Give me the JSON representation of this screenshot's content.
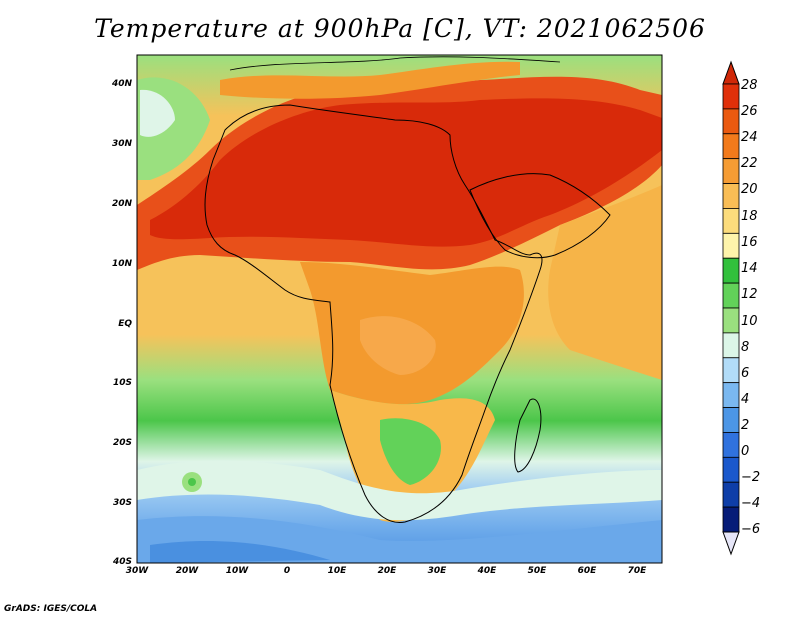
{
  "title": "Temperature at 900hPa [C], VT: 2021062506",
  "credit": "GrADS: IGES/COLA",
  "map": {
    "projection": "lat-lon",
    "lon_range": [
      -30,
      75
    ],
    "lat_range": [
      -40,
      45
    ],
    "lat_ticks": [
      {
        "label": "40N",
        "value": 40
      },
      {
        "label": "30N",
        "value": 30
      },
      {
        "label": "20N",
        "value": 20
      },
      {
        "label": "10N",
        "value": 10
      },
      {
        "label": "EQ",
        "value": 0
      },
      {
        "label": "10S",
        "value": -10
      },
      {
        "label": "20S",
        "value": -20
      },
      {
        "label": "30S",
        "value": -30
      },
      {
        "label": "40S",
        "value": -40
      }
    ],
    "lon_ticks": [
      {
        "label": "30W",
        "value": -30
      },
      {
        "label": "20W",
        "value": -20
      },
      {
        "label": "10W",
        "value": -10
      },
      {
        "label": "0",
        "value": 0
      },
      {
        "label": "10E",
        "value": 10
      },
      {
        "label": "20E",
        "value": 20
      },
      {
        "label": "30E",
        "value": 30
      },
      {
        "label": "40E",
        "value": 40
      },
      {
        "label": "50E",
        "value": 50
      },
      {
        "label": "60E",
        "value": 60
      },
      {
        "label": "70E",
        "value": 70
      }
    ]
  },
  "colorbar": {
    "labels": [
      "28",
      "26",
      "24",
      "22",
      "20",
      "18",
      "16",
      "14",
      "12",
      "10",
      "8",
      "6",
      "4",
      "2",
      "0",
      "−2",
      "−4",
      "−6"
    ],
    "colors": [
      "#e0300a",
      "#ea5a10",
      "#f27a1b",
      "#f59c34",
      "#f9bd55",
      "#fcdc7c",
      "#fef4ab",
      "#32c03c",
      "#62d259",
      "#9ae07f",
      "#dcf6e8",
      "#b2dcf8",
      "#7ab8f0",
      "#4c96e6",
      "#3072de",
      "#1a58cc",
      "#0e3ea8",
      "#061c78"
    ]
  },
  "regions": {
    "sahara_hot": "#d82a0a",
    "hot_band": "#e8501a",
    "warm": "#f39a2e",
    "mild": "#f8b84a",
    "tropical_ocean": "#f6c25a",
    "cool_ocean": "#8ed873",
    "green_land": "#4cc64a",
    "pale": "#dff5e8",
    "southern_ocean": "#7ab8ee",
    "deep_south": "#4a90e0",
    "coastline": "#000000"
  }
}
